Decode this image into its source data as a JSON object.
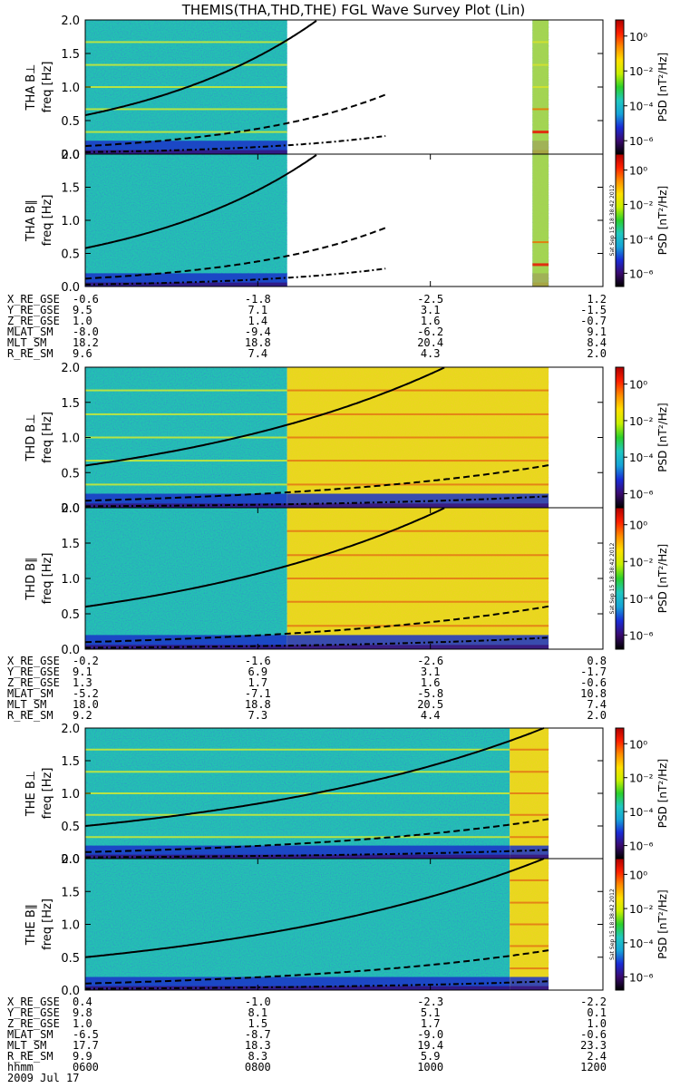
{
  "title": "THEMIS(THA,THD,THE) FGL Wave Survey Plot (Lin)",
  "colors": {
    "background": "#ffffff",
    "axis": "#000000",
    "model_curve": "#000000"
  },
  "colorbar": {
    "label": "PSD [nT²/Hz]",
    "scale": "log",
    "ticks": [
      "10⁰",
      "10⁻²",
      "10⁻⁴",
      "10⁻⁶"
    ],
    "stops": [
      "#000000",
      "#3a0a6e",
      "#1a2bd6",
      "#16a3d8",
      "#20c8c0",
      "#2bd02b",
      "#c8f000",
      "#ffe000",
      "#ff8c00",
      "#ff2000",
      "#b00000"
    ]
  },
  "timestamp_side_text": "Sat Sep 15 18:38:42 2012",
  "chart_data": {
    "type": "heatmap",
    "panels": [
      {
        "id": "THA_perp",
        "ylabel": "THA B⊥",
        "ylabel2": "freq [Hz]",
        "ylim": [
          0,
          2.0
        ],
        "yticks": [
          "2.0",
          "1.5",
          "1.0",
          "0.5",
          "0.0"
        ],
        "data_ranges": [
          [
            0.0,
            0.39
          ],
          [
            0.864,
            0.895
          ]
        ],
        "curves": [
          {
            "style": "solid",
            "f0": 0.58,
            "growth": 1.6
          },
          {
            "style": "dashed",
            "f0": 0.12,
            "growth": 2.0
          },
          {
            "style": "dashdot",
            "f0": 0.03,
            "growth": 2.2
          }
        ]
      },
      {
        "id": "THA_par",
        "ylabel": "THA B∥",
        "ylabel2": "freq [Hz]",
        "ylim": [
          0,
          2.0
        ],
        "yticks": [
          "2.0",
          "1.5",
          "1.0",
          "0.5",
          "0.0"
        ],
        "data_ranges": [
          [
            0.0,
            0.39
          ],
          [
            0.864,
            0.895
          ]
        ],
        "curves": [
          {
            "style": "solid",
            "f0": 0.58,
            "growth": 1.6
          },
          {
            "style": "dashed",
            "f0": 0.12,
            "growth": 2.0
          },
          {
            "style": "dashdot",
            "f0": 0.03,
            "growth": 2.2
          }
        ]
      },
      {
        "id": "THD_perp",
        "ylabel": "THD B⊥",
        "ylabel2": "freq [Hz]",
        "ylim": [
          0,
          2.0
        ],
        "yticks": [
          "2.0",
          "1.5",
          "1.0",
          "0.5",
          "0.0"
        ],
        "data_ranges": [
          [
            0.0,
            0.39
          ],
          [
            0.39,
            0.895
          ]
        ],
        "curves": [
          {
            "style": "solid",
            "f0": 0.6,
            "growth": 1.55
          },
          {
            "style": "dashed",
            "f0": 0.1,
            "growth": 1.8
          },
          {
            "style": "dashdot",
            "f0": 0.02,
            "growth": 2.1
          }
        ]
      },
      {
        "id": "THD_par",
        "ylabel": "THD B∥",
        "ylabel2": "freq [Hz]",
        "ylim": [
          0,
          2.0
        ],
        "yticks": [
          "2.0",
          "1.5",
          "1.0",
          "0.5",
          "0.0"
        ],
        "data_ranges": [
          [
            0.0,
            0.39
          ],
          [
            0.39,
            0.895
          ]
        ],
        "curves": [
          {
            "style": "solid",
            "f0": 0.6,
            "growth": 1.55
          },
          {
            "style": "dashed",
            "f0": 0.1,
            "growth": 1.8
          },
          {
            "style": "dashdot",
            "f0": 0.02,
            "growth": 2.1
          }
        ]
      },
      {
        "id": "THE_perp",
        "ylabel": "THE B⊥",
        "ylabel2": "freq [Hz]",
        "ylim": [
          0,
          2.0
        ],
        "yticks": [
          "2.0",
          "1.5",
          "1.0",
          "0.5",
          "0.0"
        ],
        "data_ranges": [
          [
            0.0,
            0.82
          ],
          [
            0.82,
            0.895
          ]
        ],
        "curves": [
          {
            "style": "solid",
            "f0": 0.5,
            "growth": 1.4
          },
          {
            "style": "dashed",
            "f0": 0.1,
            "growth": 1.8
          },
          {
            "style": "dashdot",
            "f0": 0.02,
            "growth": 1.9
          }
        ]
      },
      {
        "id": "THE_par",
        "ylabel": "THE B∥",
        "ylabel2": "freq [Hz]",
        "ylim": [
          0,
          2.0
        ],
        "yticks": [
          "2.0",
          "1.5",
          "1.0",
          "0.5",
          "0.0"
        ],
        "data_ranges": [
          [
            0.0,
            0.82
          ],
          [
            0.82,
            0.895
          ]
        ],
        "curves": [
          {
            "style": "solid",
            "f0": 0.5,
            "growth": 1.4
          },
          {
            "style": "dashed",
            "f0": 0.1,
            "growth": 1.8
          },
          {
            "style": "dashdot",
            "f0": 0.02,
            "growth": 1.9
          }
        ]
      }
    ],
    "ephemeris": [
      {
        "probe": "THA",
        "rows": [
          {
            "label": "X_RE_GSE",
            "values": [
              "-0.6",
              "-1.8",
              "-2.5",
              "1.2"
            ]
          },
          {
            "label": "Y_RE_GSE",
            "values": [
              "9.5",
              "7.1",
              "3.1",
              "-1.5"
            ]
          },
          {
            "label": "Z_RE_GSE",
            "values": [
              "1.0",
              "1.4",
              "1.6",
              "-0.7"
            ]
          },
          {
            "label": "MLAT_SM",
            "values": [
              "-8.0",
              "-9.4",
              "-6.2",
              "9.1"
            ]
          },
          {
            "label": "MLT_SM",
            "values": [
              "18.2",
              "18.8",
              "20.4",
              "8.4"
            ]
          },
          {
            "label": "R_RE_SM",
            "values": [
              "9.6",
              "7.4",
              "4.3",
              "2.0"
            ]
          }
        ]
      },
      {
        "probe": "THD",
        "rows": [
          {
            "label": "X_RE_GSE",
            "values": [
              "-0.2",
              "-1.6",
              "-2.6",
              "0.8"
            ]
          },
          {
            "label": "Y_RE_GSE",
            "values": [
              "9.1",
              "6.9",
              "3.1",
              "-1.7"
            ]
          },
          {
            "label": "Z_RE_GSE",
            "values": [
              "1.3",
              "1.7",
              "1.6",
              "-0.6"
            ]
          },
          {
            "label": "MLAT_SM",
            "values": [
              "-5.2",
              "-7.1",
              "-5.8",
              "10.8"
            ]
          },
          {
            "label": "MLT_SM",
            "values": [
              "18.0",
              "18.8",
              "20.5",
              "7.4"
            ]
          },
          {
            "label": "R_RE_SM",
            "values": [
              "9.2",
              "7.3",
              "4.4",
              "2.0"
            ]
          }
        ]
      },
      {
        "probe": "THE",
        "rows": [
          {
            "label": "X_RE_GSE",
            "values": [
              "0.4",
              "-1.0",
              "-2.3",
              "-2.2"
            ]
          },
          {
            "label": "Y_RE_GSE",
            "values": [
              "9.8",
              "8.1",
              "5.1",
              "0.1"
            ]
          },
          {
            "label": "Z_RE_GSE",
            "values": [
              "1.0",
              "1.5",
              "1.7",
              "1.0"
            ]
          },
          {
            "label": "MLAT_SM",
            "values": [
              "-6.5",
              "-8.7",
              "-9.0",
              "-0.6"
            ]
          },
          {
            "label": "MLT_SM",
            "values": [
              "17.7",
              "18.3",
              "19.4",
              "23.3"
            ]
          },
          {
            "label": "R_RE_SM",
            "values": [
              "9.9",
              "8.3",
              "5.9",
              "2.4"
            ]
          }
        ]
      }
    ],
    "time_axis": {
      "label": "hhmm",
      "ticks": [
        "0600",
        "0800",
        "1000",
        "1200"
      ],
      "date": "2009 Jul 17"
    }
  }
}
